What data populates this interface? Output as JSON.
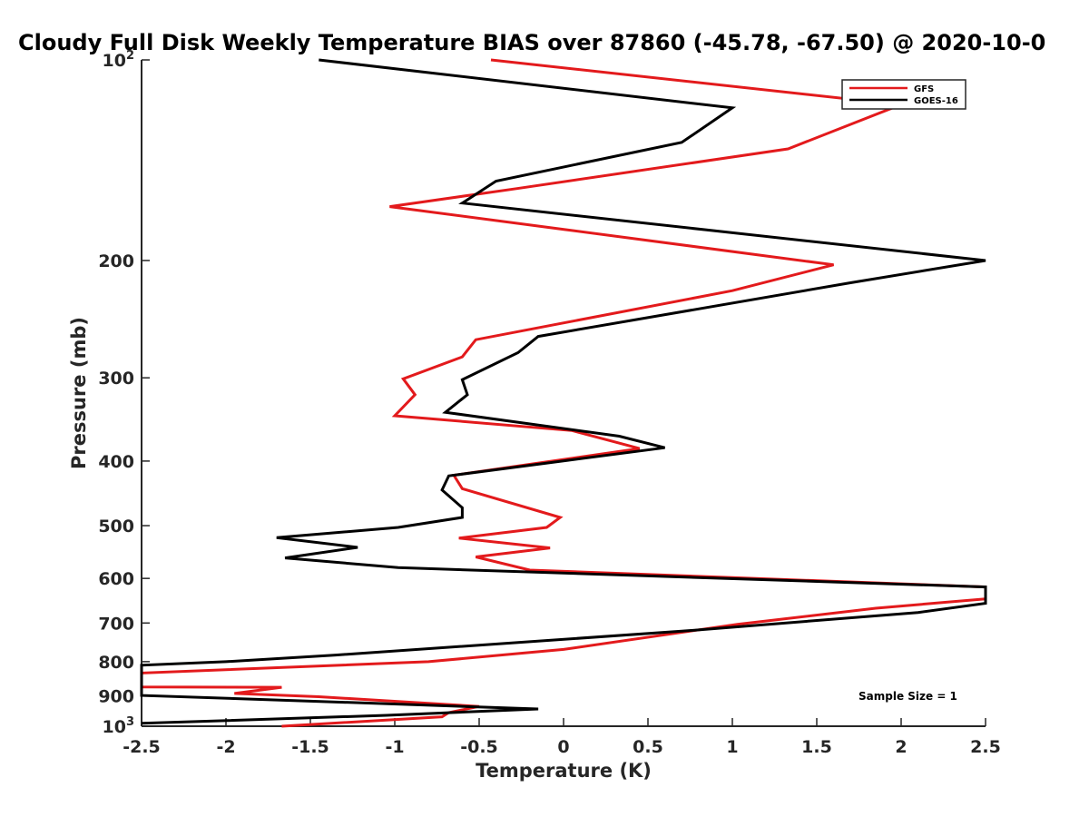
{
  "chart_data": {
    "type": "line",
    "title": "Cloudy Full Disk Weekly Temperature BIAS over 87860 (-45.78, -67.50) @ 2020-10-0",
    "xlabel": "Temperature (K)",
    "ylabel": "Pressure (mb)",
    "xlim": [
      -2.5,
      2.5
    ],
    "ylim": [
      100,
      1000
    ],
    "y_scale": "log",
    "y_reversed": true,
    "grid": false,
    "legend_position": "top-right",
    "x_ticks": [
      "-2.5",
      "-2",
      "-1.5",
      "-1",
      "-0.5",
      "0",
      "0.5",
      "1",
      "1.5",
      "2",
      "2.5"
    ],
    "x_tick_values": [
      -2.5,
      -2,
      -1.5,
      -1,
      -0.5,
      0,
      0.5,
      1,
      1.5,
      2,
      2.5
    ],
    "y_ticks": [
      {
        "value": 100,
        "base": "10",
        "exp": "2"
      },
      {
        "value": 200,
        "base": "200",
        "exp": ""
      },
      {
        "value": 300,
        "base": "300",
        "exp": ""
      },
      {
        "value": 400,
        "base": "400",
        "exp": ""
      },
      {
        "value": 500,
        "base": "500",
        "exp": ""
      },
      {
        "value": 600,
        "base": "600",
        "exp": ""
      },
      {
        "value": 700,
        "base": "700",
        "exp": ""
      },
      {
        "value": 800,
        "base": "800",
        "exp": ""
      },
      {
        "value": 900,
        "base": "900",
        "exp": ""
      },
      {
        "value": 1000,
        "base": "10",
        "exp": "3"
      }
    ],
    "series": [
      {
        "name": "GFS",
        "color": "#e31a1c",
        "points": [
          [
            -0.43,
            100
          ],
          [
            1.9,
            116
          ],
          [
            1.95,
            118
          ],
          [
            1.33,
            136
          ],
          [
            -0.28,
            156
          ],
          [
            -1.03,
            166
          ],
          [
            1.6,
            203
          ],
          [
            1.0,
            222
          ],
          [
            -0.52,
            263
          ],
          [
            -0.6,
            279
          ],
          [
            -0.95,
            301
          ],
          [
            -0.88,
            318
          ],
          [
            -1.0,
            342
          ],
          [
            0.05,
            360
          ],
          [
            0.45,
            383
          ],
          [
            -0.65,
            420
          ],
          [
            -0.6,
            440
          ],
          [
            -0.02,
            486
          ],
          [
            -0.1,
            503
          ],
          [
            -0.62,
            522
          ],
          [
            -0.08,
            540
          ],
          [
            -0.52,
            557
          ],
          [
            -0.2,
            583
          ],
          [
            2.5,
            618
          ],
          [
            2.5,
            644
          ],
          [
            1.85,
            665
          ],
          [
            1.03,
            703
          ],
          [
            0.0,
            767
          ],
          [
            -0.8,
            800
          ],
          [
            -2.5,
            832
          ],
          [
            -2.5,
            873
          ],
          [
            -1.67,
            874
          ],
          [
            -1.95,
            893
          ],
          [
            -1.45,
            903
          ],
          [
            -0.5,
            934
          ],
          [
            -0.68,
            954
          ],
          [
            -0.72,
            968
          ],
          [
            -1.67,
            1000
          ]
        ]
      },
      {
        "name": "GOES-16",
        "color": "#000000",
        "points": [
          [
            -1.45,
            100
          ],
          [
            1.0,
            118
          ],
          [
            0.7,
            133
          ],
          [
            -0.4,
            152
          ],
          [
            -0.6,
            164
          ],
          [
            2.5,
            200
          ],
          [
            1.7,
            216
          ],
          [
            -0.15,
            260
          ],
          [
            -0.27,
            275
          ],
          [
            -0.6,
            302
          ],
          [
            -0.57,
            318
          ],
          [
            -0.7,
            338
          ],
          [
            0.33,
            367
          ],
          [
            0.6,
            382
          ],
          [
            -0.68,
            421
          ],
          [
            -0.72,
            442
          ],
          [
            -0.6,
            470
          ],
          [
            -0.6,
            486
          ],
          [
            -0.98,
            503
          ],
          [
            -1.7,
            521
          ],
          [
            -1.22,
            539
          ],
          [
            -1.65,
            559
          ],
          [
            -0.98,
            578
          ],
          [
            2.5,
            618
          ],
          [
            2.5,
            654
          ],
          [
            2.1,
            675
          ],
          [
            0.7,
            720
          ],
          [
            -1.35,
            782
          ],
          [
            -2.0,
            800
          ],
          [
            -2.5,
            810
          ],
          [
            -2.5,
            899
          ],
          [
            -1.6,
            915
          ],
          [
            -0.15,
            942
          ],
          [
            -1.05,
            963
          ],
          [
            -2.5,
            990
          ]
        ]
      }
    ],
    "annotation": "Sample Size = 1"
  }
}
